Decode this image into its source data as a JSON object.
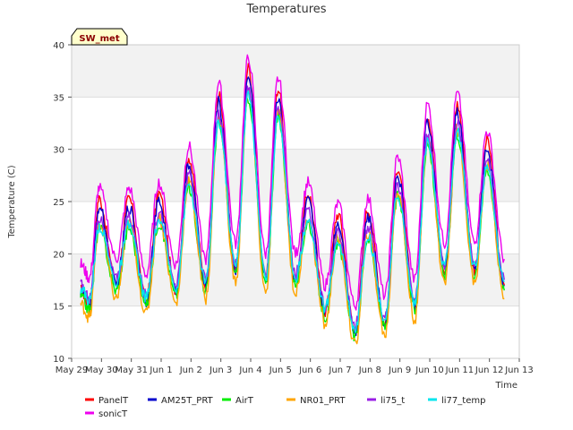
{
  "chart_data": {
    "type": "line",
    "title": "Temperatures",
    "xlabel": "Time",
    "ylabel": "Temperature (C)",
    "tag": "SW_met",
    "ylim": [
      10,
      40
    ],
    "xlim": [
      0,
      15
    ],
    "yticks": [
      10,
      15,
      20,
      25,
      30,
      35,
      40
    ],
    "xticks": [
      {
        "v": 0,
        "label": "May 29"
      },
      {
        "v": 1,
        "label": "May 30"
      },
      {
        "v": 2,
        "label": "May 31"
      },
      {
        "v": 3,
        "label": "Jun 1"
      },
      {
        "v": 4,
        "label": "Jun 2"
      },
      {
        "v": 5,
        "label": "Jun 3"
      },
      {
        "v": 6,
        "label": "Jun 4"
      },
      {
        "v": 7,
        "label": "Jun 5"
      },
      {
        "v": 8,
        "label": "Jun 6"
      },
      {
        "v": 9,
        "label": "Jun 7"
      },
      {
        "v": 10,
        "label": "Jun 8"
      },
      {
        "v": 11,
        "label": "Jun 9"
      },
      {
        "v": 12,
        "label": "Jun 10"
      },
      {
        "v": 13,
        "label": "Jun 11"
      },
      {
        "v": 14,
        "label": "Jun 12"
      },
      {
        "v": 15,
        "label": "Jun 13"
      }
    ],
    "grid": true,
    "background_bands": true,
    "legend_position": "bottom",
    "daily": [
      {
        "day": 0.3,
        "peak": 24.5,
        "min_next": 17.0
      },
      {
        "day": 1.3,
        "peak": 24.5,
        "min_next": 15.5
      },
      {
        "day": 2.3,
        "peak": 25.0,
        "min_next": 16.5
      },
      {
        "day": 3.3,
        "peak": 28.5,
        "min_next": 17.0
      },
      {
        "day": 4.3,
        "peak": 34.5,
        "min_next": 18.5
      },
      {
        "day": 5.3,
        "peak": 37.0,
        "min_next": 17.5
      },
      {
        "day": 6.3,
        "peak": 35.0,
        "min_next": 17.5
      },
      {
        "day": 7.3,
        "peak": 25.0,
        "min_next": 14.5
      },
      {
        "day": 8.3,
        "peak": 23.0,
        "min_next": 12.5
      },
      {
        "day": 9.3,
        "peak": 23.5,
        "min_next": 13.5
      },
      {
        "day": 10.3,
        "peak": 27.5,
        "min_next": 15.0
      },
      {
        "day": 11.3,
        "peak": 32.5,
        "min_next": 18.5
      },
      {
        "day": 12.3,
        "peak": 33.5,
        "min_next": 18.5
      },
      {
        "day": 13.3,
        "peak": 30.0,
        "min_next": 17.0
      }
    ],
    "series": [
      {
        "name": "PanelT",
        "color": "#ff0000",
        "peak_offset": 0.8,
        "min_offset": 0.0
      },
      {
        "name": "AM25T_PRT",
        "color": "#0000cc",
        "peak_offset": 0.0,
        "min_offset": 0.0
      },
      {
        "name": "AirT",
        "color": "#00ee00",
        "peak_offset": -2.0,
        "min_offset": -0.5
      },
      {
        "name": "NR01_PRT",
        "color": "#ffa500",
        "peak_offset": -1.5,
        "min_offset": -1.3
      },
      {
        "name": "li75_t",
        "color": "#9a1ee6",
        "peak_offset": -1.0,
        "min_offset": 0.5
      },
      {
        "name": "li77_temp",
        "color": "#00e5ee",
        "peak_offset": -1.8,
        "min_offset": 0.3
      },
      {
        "name": "sonicT",
        "color": "#ee00ee",
        "peak_offset": 1.8,
        "min_offset": 2.5
      }
    ]
  }
}
